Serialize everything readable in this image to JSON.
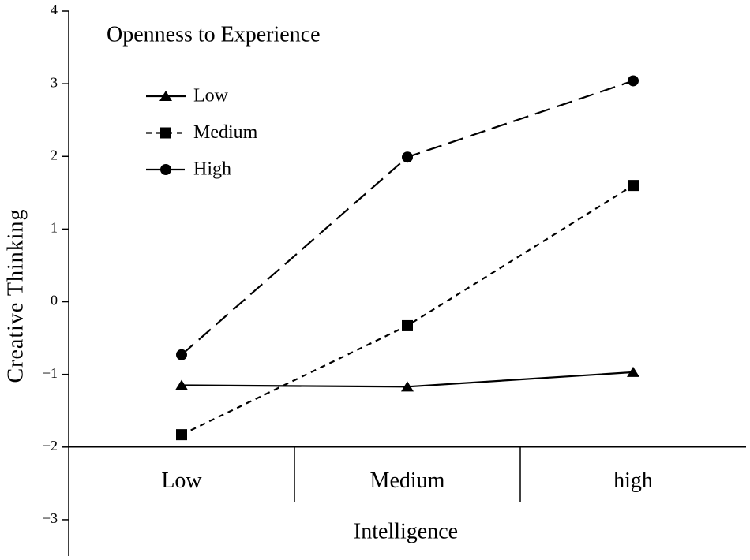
{
  "chart_data": {
    "type": "line",
    "title": "Openness to Experience",
    "xlabel": "Intelligence",
    "ylabel": "Creative Thinking",
    "categories": [
      "Low",
      "Medium",
      "high"
    ],
    "series": [
      {
        "name": "Low",
        "color": "#000000",
        "marker": "triangle",
        "dash": "solid",
        "values": [
          -1.15,
          -1.17,
          -0.97
        ]
      },
      {
        "name": "Medium",
        "color": "#000000",
        "marker": "square",
        "dash": "short",
        "values": [
          -1.83,
          -0.33,
          1.6
        ]
      },
      {
        "name": "High",
        "color": "#000000",
        "marker": "circle",
        "dash": "long",
        "values": [
          -0.73,
          1.99,
          3.04
        ]
      }
    ],
    "ylim": [
      -3.5,
      4
    ],
    "yticks": [
      {
        "value": -3,
        "label": "−3"
      },
      {
        "value": -2,
        "label": "−2"
      },
      {
        "value": -1,
        "label": "−1"
      },
      0,
      1,
      2,
      3,
      4
    ],
    "xaxis_at": -2,
    "grid": false,
    "legend": "upper left"
  }
}
